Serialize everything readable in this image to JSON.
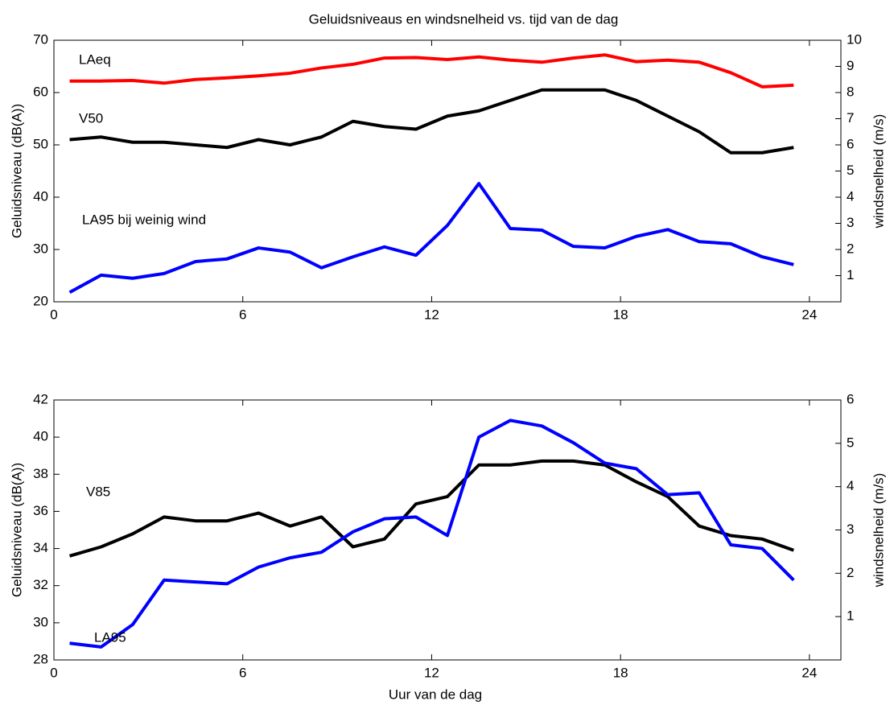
{
  "chart_data": [
    {
      "type": "line",
      "title": "Geluidsniveaus en windsnelheid vs. tijd van de dag",
      "ylabel": "Geluidsniveau (dB(A))",
      "y2label": "windsnelheid (m/s)",
      "x": [
        0.5,
        1.5,
        2.5,
        3.5,
        4.5,
        5.5,
        6.5,
        7.5,
        8.5,
        9.5,
        10.5,
        11.5,
        12.5,
        13.5,
        14.5,
        15.5,
        16.5,
        17.5,
        18.5,
        19.5,
        20.5,
        21.5,
        22.5,
        23.5
      ],
      "xlim": [
        0,
        25
      ],
      "xticks": [
        0,
        6,
        12,
        18,
        24
      ],
      "ylim": [
        20,
        70
      ],
      "yticks": [
        20,
        30,
        40,
        50,
        60,
        70
      ],
      "y2lim": [
        0,
        10
      ],
      "y2ticks": [
        1,
        2,
        3,
        4,
        5,
        6,
        7,
        8,
        9,
        10
      ],
      "annotations": [
        "LAeq",
        "V50",
        "LA95 bij weinig wind"
      ],
      "series": [
        {
          "color": "#ff0000",
          "values": [
            62.2,
            62.2,
            62.3,
            61.8,
            62.5,
            62.8,
            63.2,
            63.7,
            64.7,
            65.4,
            66.6,
            66.7,
            66.3,
            66.8,
            66.2,
            65.8,
            66.6,
            67.2,
            65.9,
            66.2,
            65.8,
            63.8,
            61.1,
            61.4
          ]
        },
        {
          "color": "#000000",
          "axis": "y2",
          "values": [
            6.2,
            6.3,
            6.1,
            6.1,
            6.0,
            5.9,
            6.2,
            6.0,
            6.3,
            6.9,
            6.7,
            6.6,
            7.1,
            7.3,
            7.7,
            8.1,
            8.1,
            8.1,
            7.7,
            7.1,
            6.5,
            5.7,
            5.7,
            5.9
          ]
        },
        {
          "color": "#0000ff",
          "values": [
            21.8,
            25.1,
            24.5,
            25.4,
            27.7,
            28.2,
            30.3,
            29.5,
            26.5,
            28.6,
            30.5,
            28.9,
            34.6,
            42.6,
            34.0,
            33.7,
            30.6,
            30.3,
            32.5,
            33.8,
            31.5,
            31.1,
            28.6,
            27.1
          ]
        }
      ]
    },
    {
      "type": "line",
      "xlabel": "Uur van de dag",
      "ylabel": "Geluidsniveau (dB(A))",
      "y2label": "windsnelheid (m/s)",
      "x": [
        0.5,
        1.5,
        2.5,
        3.5,
        4.5,
        5.5,
        6.5,
        7.5,
        8.5,
        9.5,
        10.5,
        11.5,
        12.5,
        13.5,
        14.5,
        15.5,
        16.5,
        17.5,
        18.5,
        19.5,
        20.5,
        21.5,
        22.5,
        23.5
      ],
      "xlim": [
        0,
        25
      ],
      "xticks": [
        0,
        6,
        12,
        18,
        24
      ],
      "ylim": [
        28,
        42
      ],
      "yticks": [
        28,
        30,
        32,
        34,
        36,
        38,
        40,
        42
      ],
      "y2lim": [
        0,
        6
      ],
      "y2ticks": [
        1,
        2,
        3,
        4,
        5,
        6
      ],
      "annotations": [
        "V85",
        "LA95"
      ],
      "series": [
        {
          "color": "#000000",
          "axis": "y2",
          "values": [
            2.4,
            2.61,
            2.91,
            3.3,
            3.21,
            3.21,
            3.39,
            3.09,
            3.3,
            2.61,
            2.79,
            3.6,
            3.77,
            4.5,
            4.5,
            4.59,
            4.59,
            4.5,
            4.11,
            3.77,
            3.09,
            2.87,
            2.79,
            2.53
          ]
        },
        {
          "color": "#0000ff",
          "values": [
            28.9,
            28.7,
            29.9,
            32.3,
            32.2,
            32.1,
            33.0,
            33.5,
            33.8,
            34.9,
            35.6,
            35.7,
            34.7,
            40.0,
            40.9,
            40.6,
            39.7,
            38.6,
            38.3,
            36.9,
            37.0,
            34.2,
            34.0,
            32.3
          ]
        }
      ]
    }
  ]
}
